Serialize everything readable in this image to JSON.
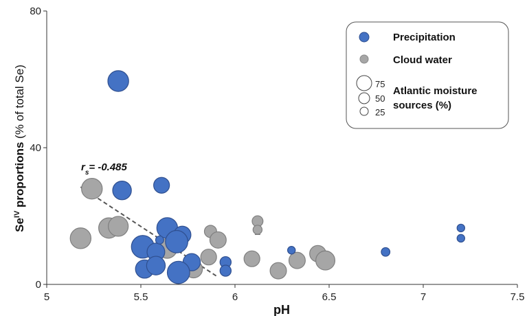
{
  "chart_data": {
    "type": "scatter",
    "xlabel": "pH",
    "ylabel_main": "Se",
    "ylabel_sup": "IV",
    "ylabel_bold": " proportions",
    "ylabel_rest": " (% of total Se)",
    "xlim": [
      5,
      7.5
    ],
    "ylim": [
      0,
      80
    ],
    "x_ticks": [
      "5",
      "5.5",
      "6",
      "6.5",
      "7",
      "7.5"
    ],
    "x_tick_values": [
      5,
      5.5,
      6,
      6.5,
      7,
      7.5
    ],
    "y_ticks": [
      "0",
      "40",
      "80"
    ],
    "y_tick_values": [
      0,
      40,
      80
    ],
    "grid": false,
    "legend": {
      "placement": "top-right",
      "series_entries": [
        "Precipitation",
        "Cloud water"
      ],
      "size_values": [
        "75",
        "50",
        "25"
      ],
      "size_line1": "Atlantic moisture",
      "size_line2": "sources (%)"
    },
    "annotation": {
      "r": "r",
      "sub": "s",
      "rest": "= -0.485"
    },
    "trendline": {
      "x": [
        5.18,
        5.9
      ],
      "y": [
        28.5,
        2.5
      ]
    },
    "colors": {
      "precipitation": "#4472c4",
      "precipitation_edge": "#2f4f8f",
      "cloud": "#a6a6a6",
      "cloud_edge": "#7f7f7f"
    },
    "series": [
      {
        "name": "Precipitation",
        "points": [
          {
            "x": 5.38,
            "y": 59.5,
            "size": 52
          },
          {
            "x": 5.4,
            "y": 27.5,
            "size": 42
          },
          {
            "x": 5.61,
            "y": 29.0,
            "size": 30
          },
          {
            "x": 5.64,
            "y": 16.5,
            "size": 52
          },
          {
            "x": 5.72,
            "y": 14.5,
            "size": 36
          },
          {
            "x": 5.51,
            "y": 11.0,
            "size": 62
          },
          {
            "x": 5.69,
            "y": 12.5,
            "size": 60
          },
          {
            "x": 5.58,
            "y": 9.5,
            "size": 38
          },
          {
            "x": 5.77,
            "y": 6.5,
            "size": 36
          },
          {
            "x": 5.52,
            "y": 4.5,
            "size": 40
          },
          {
            "x": 5.58,
            "y": 5.5,
            "size": 42
          },
          {
            "x": 5.7,
            "y": 3.5,
            "size": 60
          },
          {
            "x": 5.6,
            "y": 13.0,
            "size": 8
          },
          {
            "x": 5.95,
            "y": 6.5,
            "size": 15
          },
          {
            "x": 5.95,
            "y": 4.0,
            "size": 15
          },
          {
            "x": 6.3,
            "y": 10.0,
            "size": 7
          },
          {
            "x": 6.8,
            "y": 9.5,
            "size": 9
          },
          {
            "x": 7.2,
            "y": 16.5,
            "size": 7
          },
          {
            "x": 7.2,
            "y": 13.5,
            "size": 7
          }
        ]
      },
      {
        "name": "Cloud water",
        "points": [
          {
            "x": 5.24,
            "y": 28.0,
            "size": 52
          },
          {
            "x": 5.18,
            "y": 13.5,
            "size": 52
          },
          {
            "x": 5.33,
            "y": 16.5,
            "size": 50
          },
          {
            "x": 5.38,
            "y": 17.0,
            "size": 48
          },
          {
            "x": 5.64,
            "y": 10.5,
            "size": 46
          },
          {
            "x": 5.78,
            "y": 4.5,
            "size": 38
          },
          {
            "x": 5.86,
            "y": 8.0,
            "size": 30
          },
          {
            "x": 5.87,
            "y": 15.5,
            "size": 18
          },
          {
            "x": 5.91,
            "y": 13.0,
            "size": 32
          },
          {
            "x": 6.09,
            "y": 7.5,
            "size": 30
          },
          {
            "x": 6.12,
            "y": 18.5,
            "size": 14
          },
          {
            "x": 6.12,
            "y": 16.0,
            "size": 10
          },
          {
            "x": 6.23,
            "y": 4.0,
            "size": 32
          },
          {
            "x": 6.33,
            "y": 7.0,
            "size": 32
          },
          {
            "x": 6.44,
            "y": 9.0,
            "size": 32
          },
          {
            "x": 6.48,
            "y": 7.0,
            "size": 44
          }
        ]
      }
    ]
  }
}
